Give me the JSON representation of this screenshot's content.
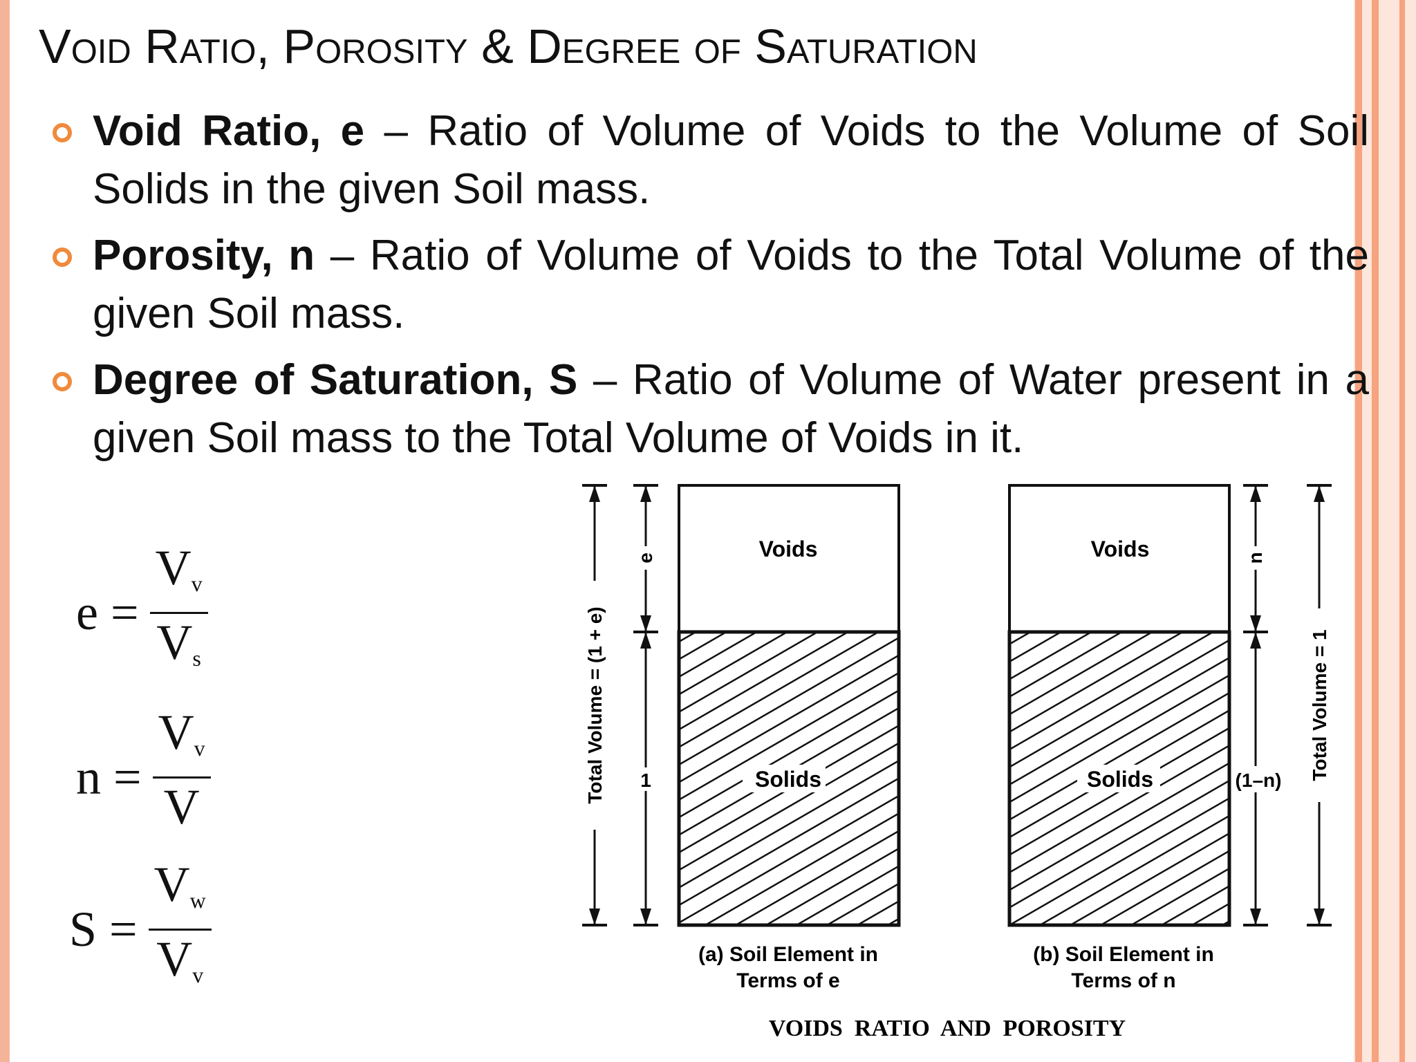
{
  "slide": {
    "title_parts": [
      "Void Ratio, Porosity & Degree of Saturation"
    ],
    "bullets": [
      {
        "term": "Void Ratio",
        "symbol": ", e",
        "text": " – Ratio of Volume of Voids to the Volume of Soil Solids in the given Soil mass."
      },
      {
        "term": "Porosity, n",
        "symbol": "",
        "text": " – Ratio of Volume of Voids to the Total Volume of the given Soil mass."
      },
      {
        "term": "Degree of Saturation, S",
        "symbol": "",
        "text": " – Ratio of Volume of Water present in a given Soil mass to the Total Volume of Voids in it."
      }
    ],
    "formulas": [
      {
        "lhs": "e =",
        "num": "V",
        "num_sub": "v",
        "den": "V",
        "den_sub": "s"
      },
      {
        "lhs": "n =",
        "num": "V",
        "num_sub": "v",
        "den": "V",
        "den_sub": ""
      },
      {
        "lhs": "S =",
        "num": "V",
        "num_sub": "w",
        "den": "V",
        "den_sub": "v"
      }
    ],
    "diagram": {
      "left_total_label": "Total Volume = (1 + e)",
      "left_e_label": "e",
      "left_one_label": "1",
      "voids_label": "Voids",
      "solids_label": "Solids",
      "right_n_label": "n",
      "right_1n_label": "(1–n)",
      "right_total_label": "Total Volume = 1",
      "caption_a_line1": "(a) Soil Element in",
      "caption_a_line2": "Terms of e",
      "caption_b_line1": "(b) Soil Element in",
      "caption_b_line2": "Terms of n",
      "caption_main": "VOIDS  RATIO  AND  POROSITY"
    }
  }
}
